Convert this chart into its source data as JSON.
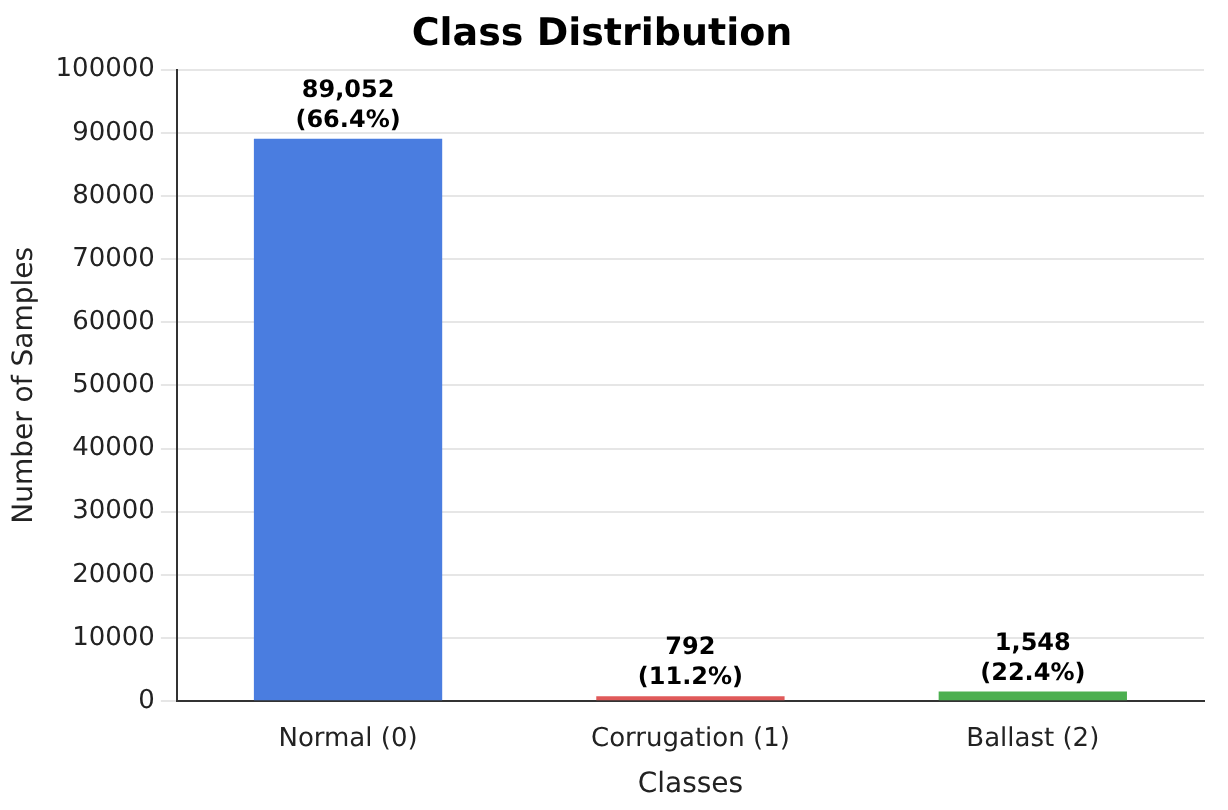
{
  "chart_data": {
    "type": "bar",
    "title": "Class Distribution",
    "xlabel": "Classes",
    "ylabel": "Number of Samples",
    "categories": [
      "Normal (0)",
      "Corrugation (1)",
      "Ballast (2)"
    ],
    "values": [
      89052,
      792,
      1548
    ],
    "colors": [
      "#4a7de0",
      "#e05a5a",
      "#4caf50"
    ],
    "value_labels": [
      "89,052\n(66.4%)",
      "792\n(11.2%)",
      "1,548\n(22.4%)"
    ],
    "ylim": [
      0,
      100000
    ],
    "yticks": [
      0,
      10000,
      20000,
      30000,
      40000,
      50000,
      60000,
      70000,
      80000,
      90000,
      100000
    ],
    "grid": "y"
  }
}
